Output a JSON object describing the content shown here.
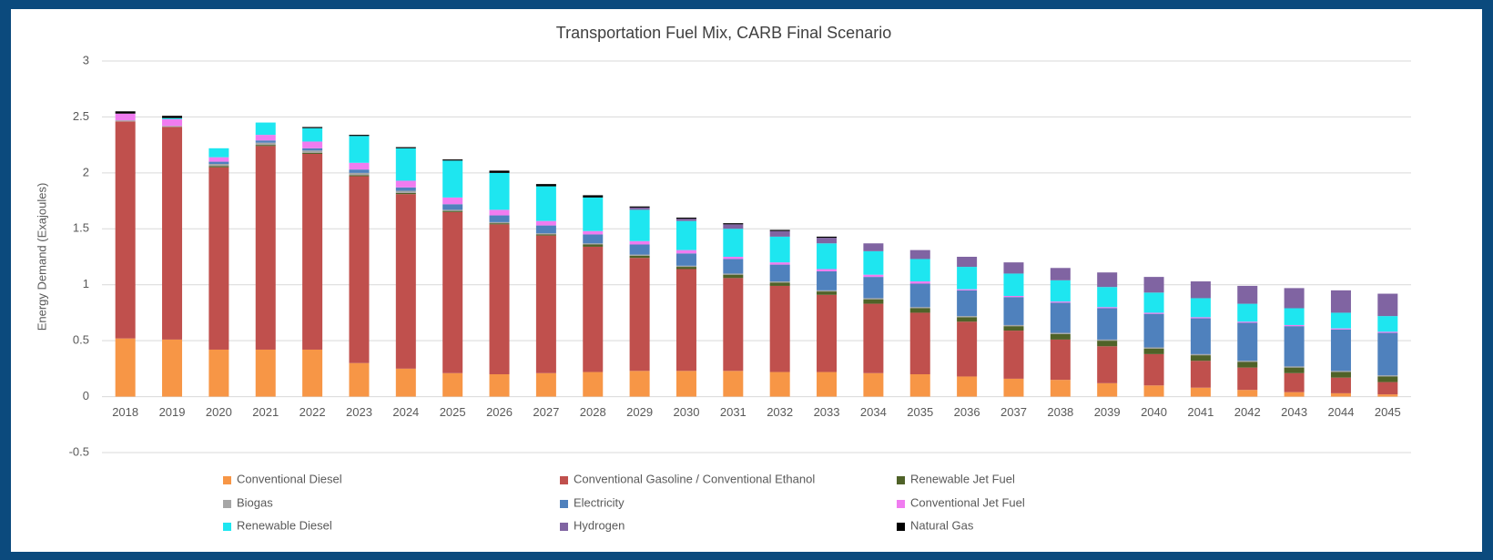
{
  "chart_data": {
    "type": "stacked_bar",
    "title": "Transportation Fuel Mix, CARB Final Scenario",
    "y_label": "Energy Demand (Exajoules)",
    "categories": [
      "2018",
      "2019",
      "2020",
      "2021",
      "2022",
      "2023",
      "2024",
      "2025",
      "2026",
      "2027",
      "2028",
      "2029",
      "2030",
      "2031",
      "2032",
      "2033",
      "2034",
      "2035",
      "2036",
      "2037",
      "2038",
      "2039",
      "2040",
      "2041",
      "2042",
      "2043",
      "2044",
      "2045"
    ],
    "ylim": [
      -0.5,
      3
    ],
    "yticks": [
      -0.5,
      0,
      0.5,
      1,
      1.5,
      2,
      2.5,
      3
    ],
    "grid": true,
    "legend": "bottom",
    "series": [
      {
        "name": "Conventional Diesel",
        "color": "#f79646",
        "values": [
          0.52,
          0.51,
          0.42,
          0.42,
          0.42,
          0.3,
          0.25,
          0.21,
          0.2,
          0.21,
          0.22,
          0.23,
          0.23,
          0.23,
          0.22,
          0.22,
          0.21,
          0.2,
          0.18,
          0.16,
          0.15,
          0.12,
          0.1,
          0.08,
          0.06,
          0.04,
          0.03,
          0.02
        ]
      },
      {
        "name": "Conventional Gasoline / Conventional Ethanol",
        "color": "#c0504d",
        "values": [
          1.94,
          1.9,
          1.63,
          1.82,
          1.75,
          1.67,
          1.56,
          1.44,
          1.34,
          1.23,
          1.12,
          1.01,
          0.91,
          0.83,
          0.77,
          0.69,
          0.62,
          0.55,
          0.49,
          0.43,
          0.36,
          0.33,
          0.28,
          0.24,
          0.2,
          0.17,
          0.14,
          0.11
        ]
      },
      {
        "name": "Renewable Jet Fuel",
        "color": "#4f6228",
        "values": [
          0,
          0,
          0.01,
          0.01,
          0.01,
          0.01,
          0.01,
          0.01,
          0.01,
          0.01,
          0.02,
          0.02,
          0.02,
          0.03,
          0.03,
          0.03,
          0.04,
          0.04,
          0.04,
          0.04,
          0.05,
          0.05,
          0.05,
          0.05,
          0.05,
          0.05,
          0.05,
          0.05
        ]
      },
      {
        "name": "Biogas",
        "color": "#a6a6a6",
        "values": [
          0.01,
          0.01,
          0.02,
          0.02,
          0.02,
          0.02,
          0.02,
          0.01,
          0.01,
          0.01,
          0.01,
          0.01,
          0.01,
          0.01,
          0.01,
          0.01,
          0.01,
          0.01,
          0.01,
          0.01,
          0.01,
          0.01,
          0.01,
          0.01,
          0.01,
          0.01,
          0.01,
          0.01
        ]
      },
      {
        "name": "Electricity",
        "color": "#4f81bd",
        "values": [
          0,
          0,
          0.02,
          0.02,
          0.02,
          0.03,
          0.03,
          0.05,
          0.06,
          0.07,
          0.08,
          0.09,
          0.11,
          0.13,
          0.15,
          0.17,
          0.19,
          0.21,
          0.23,
          0.25,
          0.27,
          0.28,
          0.3,
          0.32,
          0.34,
          0.36,
          0.37,
          0.38
        ]
      },
      {
        "name": "Conventional Jet Fuel",
        "color": "#f07cf0",
        "values": [
          0.06,
          0.06,
          0.04,
          0.05,
          0.06,
          0.06,
          0.06,
          0.06,
          0.05,
          0.04,
          0.03,
          0.03,
          0.03,
          0.02,
          0.02,
          0.02,
          0.02,
          0.02,
          0.01,
          0.01,
          0.01,
          0.01,
          0.01,
          0.01,
          0.01,
          0.01,
          0.01,
          0.01
        ]
      },
      {
        "name": "Renewable Diesel",
        "color": "#1ee6f0",
        "values": [
          0,
          0.01,
          0.08,
          0.11,
          0.12,
          0.24,
          0.29,
          0.33,
          0.33,
          0.31,
          0.3,
          0.28,
          0.26,
          0.25,
          0.23,
          0.23,
          0.21,
          0.2,
          0.2,
          0.2,
          0.19,
          0.18,
          0.18,
          0.17,
          0.16,
          0.15,
          0.14,
          0.14
        ]
      },
      {
        "name": "Hydrogen",
        "color": "#8064a2",
        "values": [
          0,
          0,
          0,
          0,
          0,
          0,
          0,
          0,
          0,
          0,
          0,
          0.02,
          0.02,
          0.04,
          0.05,
          0.05,
          0.07,
          0.08,
          0.09,
          0.1,
          0.11,
          0.13,
          0.14,
          0.15,
          0.16,
          0.18,
          0.2,
          0.2
        ]
      },
      {
        "name": "Natural Gas",
        "color": "#000000",
        "values": [
          0.02,
          0.02,
          0,
          0,
          0.01,
          0.01,
          0.01,
          0.01,
          0.02,
          0.02,
          0.02,
          0.01,
          0.01,
          0.01,
          0.01,
          0.01,
          0,
          0,
          0,
          0,
          0,
          0,
          0,
          0,
          0,
          0,
          0,
          0
        ]
      }
    ]
  }
}
